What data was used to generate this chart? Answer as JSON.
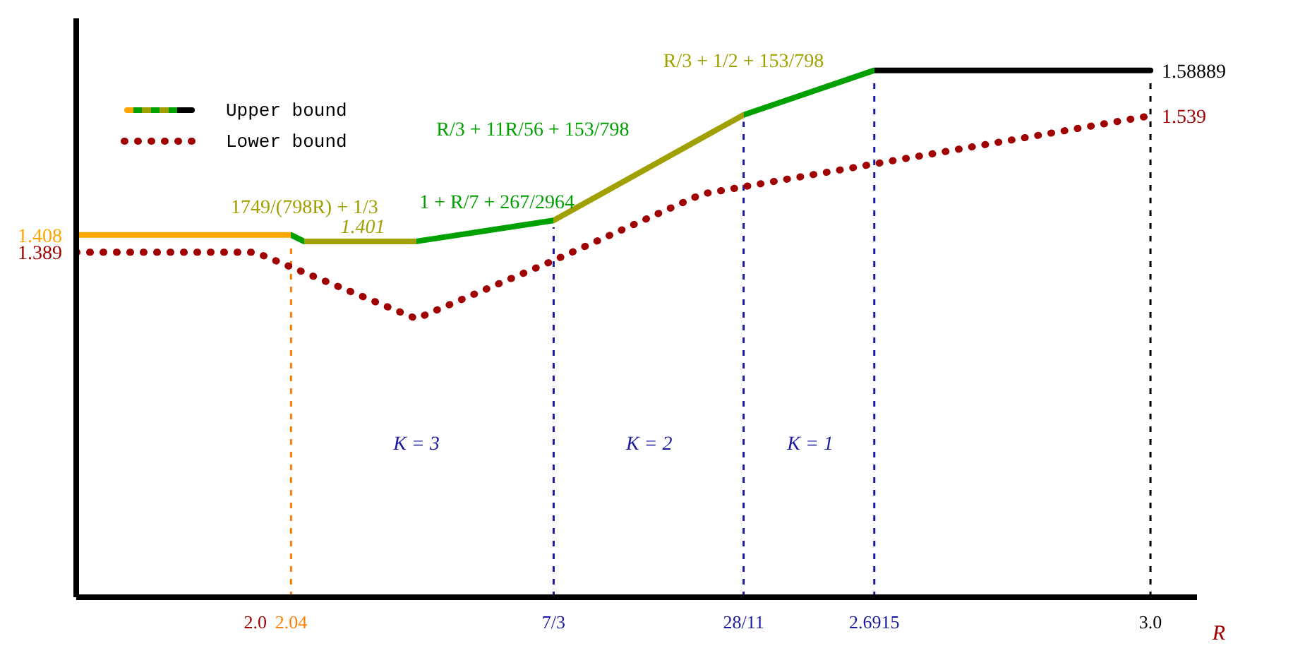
{
  "chart_data": {
    "type": "line",
    "xlabel": "R",
    "xlim": [
      1.8,
      3.052
    ],
    "ylim": [
      1.01,
      1.646
    ],
    "xticks": [
      {
        "value": 2,
        "label": "2.0"
      },
      2.04,
      {
        "value": 2.3333,
        "label": "7/3"
      },
      {
        "value": 2.5455,
        "label": "28/11"
      },
      2.6915,
      {
        "value": 3,
        "label": "3.0"
      }
    ],
    "yticks": [
      1.389,
      1.408
    ],
    "series": [
      {
        "name": "Upper bound",
        "x": [
          1.8,
          2.04,
          2.0545,
          2.18,
          2.3333,
          2.5455,
          2.6915,
          3.0
        ],
        "values": [
          1.408,
          1.408,
          1.401,
          1.401,
          1.424,
          1.54,
          1.58889,
          1.58889
        ],
        "colors": [
          "#ffa500",
          "#00a000",
          "#a0a000",
          "#00a000",
          "#a0a000",
          "#00a000",
          "#000000",
          "#000000"
        ],
        "line_style": "solid"
      },
      {
        "name": "Lower bound",
        "x": [
          1.8,
          2.0,
          2.18,
          2.3333,
          2.499,
          3.0
        ],
        "values": [
          1.389,
          1.389,
          1.316,
          1.38,
          1.453,
          1.539
        ],
        "color": "#a00000",
        "line_style": "dotted"
      }
    ],
    "ref_lines": [
      {
        "axis": "x",
        "value": 2.04,
        "color": "#ff8000",
        "line_style": "dashed"
      },
      {
        "axis": "x",
        "value": 2.3333,
        "color": "#1a1aa0",
        "line_style": "dashed"
      },
      {
        "axis": "x",
        "value": 2.5455,
        "color": "#1a1aa0",
        "line_style": "dashed"
      },
      {
        "axis": "x",
        "value": 2.6915,
        "color": "#1a1aa0",
        "line_style": "dashed"
      },
      {
        "axis": "x",
        "value": 3.0,
        "color": "#000000",
        "line_style": "dashed"
      }
    ],
    "annotations": [
      "1749/(798R) + 1/3",
      "1.401",
      "1 + R/7 + 267/2964",
      "R/3 + 11R/56 + 153/798",
      "R/3 + 1/2 + 153/798",
      {
        "text": "1.58889",
        "x": 3.0,
        "y": 1.58889
      },
      {
        "text": "1.539",
        "x": 3.0,
        "y": 1.539
      },
      "K = 3",
      "K = 2",
      "K = 1"
    ],
    "legend": "top left"
  }
}
